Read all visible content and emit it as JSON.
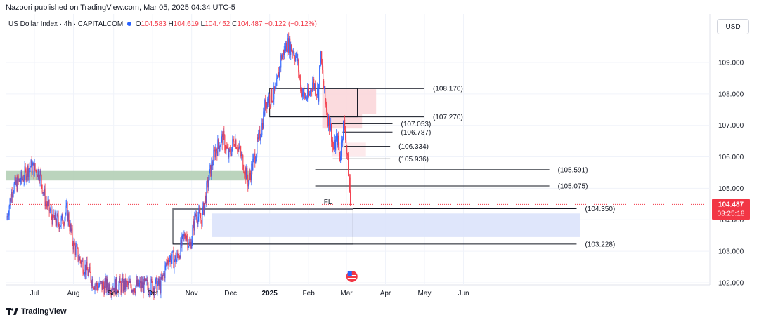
{
  "header": {
    "publisher": "Nazoori published on TradingView.com, Mar 05, 2025 04:34 UTC-5"
  },
  "legend": {
    "symbol": "US Dollar Index · 4h · CAPITALCOM",
    "open_label": "O",
    "open": "104.583",
    "high_label": "H",
    "high": "104.619",
    "low_label": "L",
    "low": "104.452",
    "close_label": "C",
    "close": "104.487",
    "change": "−0.122 (−0.12%)"
  },
  "currency": "USD",
  "footer": {
    "brand": "TradingView"
  },
  "colors": {
    "up": "#2962ff",
    "down": "#f23645",
    "accent": "#f23645"
  },
  "chart_data": {
    "type": "candlestick",
    "timeframe": "4h",
    "ylim": [
      101.9,
      110.7
    ],
    "y_ticks": [
      "102.000",
      "103.000",
      "104.000",
      "105.000",
      "106.000",
      "107.000",
      "108.000",
      "109.000"
    ],
    "x_ticks": [
      {
        "label": "Jul",
        "t": 0.0
      },
      {
        "label": "Aug",
        "t": 1.0
      },
      {
        "label": "Sep",
        "t": 2.03
      },
      {
        "label": "Oct",
        "t": 3.03
      },
      {
        "label": "Nov",
        "t": 4.03
      },
      {
        "label": "Dec",
        "t": 5.03
      },
      {
        "label": "2025",
        "t": 6.03
      },
      {
        "label": "Feb",
        "t": 7.03
      },
      {
        "label": "Mar",
        "t": 8.0
      },
      {
        "label": "Apr",
        "t": 9.0
      },
      {
        "label": "May",
        "t": 10.0
      },
      {
        "label": "Jun",
        "t": 11.0
      }
    ],
    "price_path": [
      [
        -0.7,
        104.0
      ],
      [
        -0.55,
        105.0
      ],
      [
        -0.3,
        105.3
      ],
      [
        -0.1,
        105.7
      ],
      [
        0.15,
        105.5
      ],
      [
        0.3,
        104.6
      ],
      [
        0.5,
        104.0
      ],
      [
        0.7,
        103.9
      ],
      [
        0.85,
        104.3
      ],
      [
        1.0,
        103.3
      ],
      [
        1.15,
        102.8
      ],
      [
        1.35,
        102.4
      ],
      [
        1.5,
        102.1
      ],
      [
        1.6,
        101.9
      ],
      [
        3.25,
        101.9
      ],
      [
        3.45,
        102.8
      ],
      [
        3.65,
        102.7
      ],
      [
        3.9,
        103.6
      ],
      [
        4.0,
        103.1
      ],
      [
        4.15,
        104.2
      ],
      [
        4.3,
        104.0
      ],
      [
        4.5,
        105.4
      ],
      [
        4.65,
        106.2
      ],
      [
        4.85,
        106.6
      ],
      [
        5.0,
        106.0
      ],
      [
        5.15,
        106.6
      ],
      [
        5.35,
        105.9
      ],
      [
        5.5,
        105.2
      ],
      [
        5.7,
        106.2
      ],
      [
        5.85,
        107.0
      ],
      [
        5.95,
        107.8
      ],
      [
        6.2,
        108.0
      ],
      [
        6.35,
        109.2
      ],
      [
        6.5,
        109.6
      ],
      [
        6.65,
        109.4
      ],
      [
        6.75,
        109.1
      ],
      [
        6.85,
        108.2
      ],
      [
        6.95,
        107.9
      ],
      [
        7.05,
        107.9
      ],
      [
        7.15,
        108.4
      ],
      [
        7.3,
        108.0
      ],
      [
        7.35,
        109.3
      ],
      [
        7.45,
        108.0
      ],
      [
        7.55,
        107.2
      ],
      [
        7.62,
        106.9
      ],
      [
        7.68,
        106.2
      ],
      [
        7.78,
        106.6
      ],
      [
        7.85,
        106.0
      ],
      [
        7.9,
        106.6
      ],
      [
        7.95,
        107.1
      ],
      [
        8.0,
        106.7
      ],
      [
        8.04,
        105.9
      ],
      [
        8.08,
        105.4
      ],
      [
        8.12,
        104.5
      ]
    ],
    "last_price": "104.487",
    "countdown": "03:25:18",
    "zones": [
      {
        "kind": "supply",
        "t1": 7.38,
        "t2": 8.76,
        "y1": 107.35,
        "y2": 108.15,
        "color": "#fbd7da"
      },
      {
        "kind": "supply",
        "t1": 7.38,
        "t2": 8.4,
        "y1": 106.9,
        "y2": 107.35,
        "color": "#fbd7da"
      },
      {
        "kind": "supply",
        "t1": 7.62,
        "t2": 8.5,
        "y1": 106.0,
        "y2": 106.45,
        "color": "#fde8ea"
      },
      {
        "kind": "support",
        "t1": -0.8,
        "t2": 5.58,
        "y1": 105.25,
        "y2": 105.55,
        "color": "#b4cfb6"
      },
      {
        "kind": "demand",
        "t1": 4.55,
        "t2": 14.0,
        "y1": 103.45,
        "y2": 104.2,
        "color": "#dbe3fb"
      }
    ],
    "boxes": [
      {
        "t1": 6.03,
        "t2": 8.28,
        "y1": 107.27,
        "y2": 108.17
      },
      {
        "t1": 3.55,
        "t2": 8.17,
        "y1": 103.228,
        "y2": 104.35
      }
    ],
    "levels": [
      {
        "value": 108.17,
        "label": "(108.170)",
        "t1": 7.38,
        "t2": 10.0
      },
      {
        "value": 107.27,
        "label": "(107.270)",
        "t1": 6.03,
        "t2": 10.0
      },
      {
        "value": 107.053,
        "label": "(107.053)",
        "t1": 7.62,
        "t2": 9.18
      },
      {
        "value": 106.787,
        "label": "(106.787)",
        "t1": 7.9,
        "t2": 9.18
      },
      {
        "value": 106.334,
        "label": "(106.334)",
        "t1": 7.95,
        "t2": 9.12
      },
      {
        "value": 105.936,
        "label": "(105.936)",
        "t1": 7.65,
        "t2": 9.12
      },
      {
        "value": 105.591,
        "label": "(105.591)",
        "t1": 7.2,
        "t2": 13.2
      },
      {
        "value": 105.075,
        "label": "(105.075)",
        "t1": 7.2,
        "t2": 13.2
      },
      {
        "value": 104.35,
        "label": "(104.350)",
        "t1": 3.55,
        "t2": 13.9
      },
      {
        "value": 103.228,
        "label": "(103.228)",
        "t1": 3.55,
        "t2": 13.9
      }
    ],
    "annotations": [
      {
        "text": "FL",
        "t": 7.42,
        "y": 104.58
      }
    ],
    "event_marker": {
      "t": 8.14
    }
  }
}
